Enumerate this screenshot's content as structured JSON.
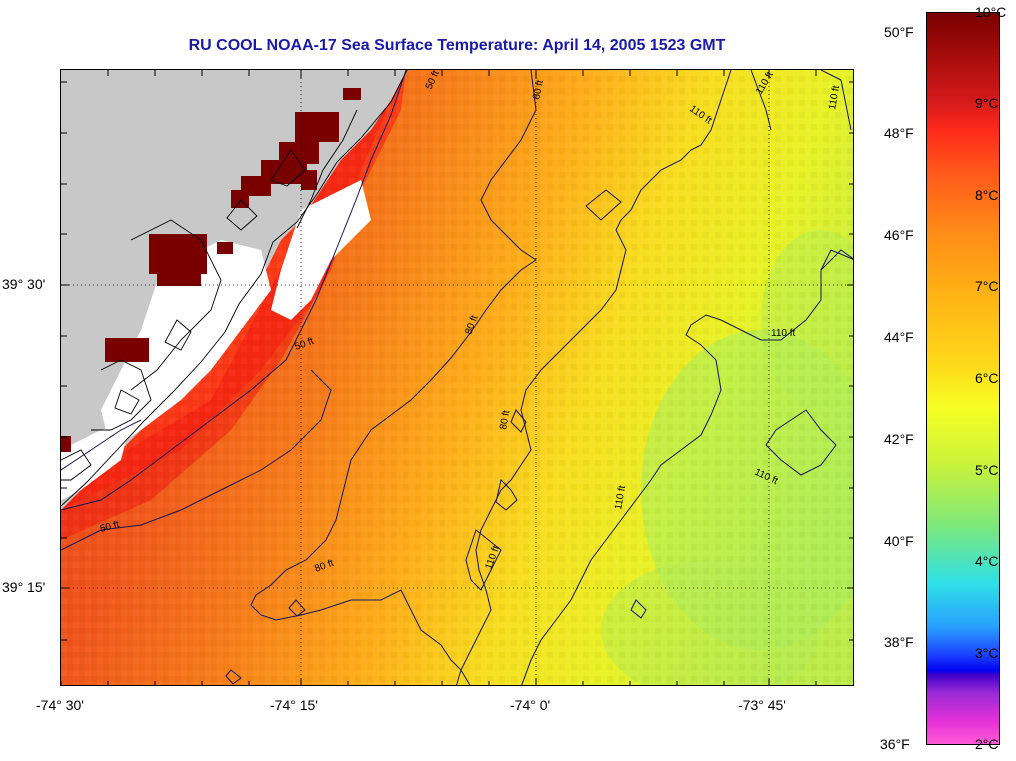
{
  "title": "RU COOL  NOAA-17  Sea Surface Temperature:  April 14, 2005 1523 GMT",
  "lat_labels": [
    "39° 30'",
    "39° 15'"
  ],
  "lon_labels": [
    "-74° 30'",
    "-74° 15'",
    "-74° 0'",
    "-73° 45'"
  ],
  "contour_labels": {
    "c50_a": "50 ft",
    "c50_b": "50 ft",
    "c50_c": "50 ft",
    "c80_a": "80 ft",
    "c80_b": "80 ft",
    "c80_c": "80 ft",
    "c80_d": "80 ft",
    "c110_a": "110 ft",
    "c110_b": "110 ft",
    "c110_c": "110 ft",
    "c110_d": "110 ft",
    "c110_e": "110 ft",
    "c110_f": "110 ft",
    "c110_g": "110 ft"
  },
  "colorbar": {
    "fahrenheit": [
      "50°F",
      "48°F",
      "46°F",
      "44°F",
      "42°F",
      "40°F",
      "38°F",
      "36°F"
    ],
    "celsius": [
      "10°C",
      "9°C",
      "8°C",
      "7°C",
      "6°C",
      "5°C",
      "4°C",
      "3°C",
      "2°C"
    ]
  },
  "colors": {
    "land": "#c8c8c8",
    "cloud_mask": "#ffffff",
    "hot": "#7a0000",
    "title": "#1a1aa6"
  }
}
